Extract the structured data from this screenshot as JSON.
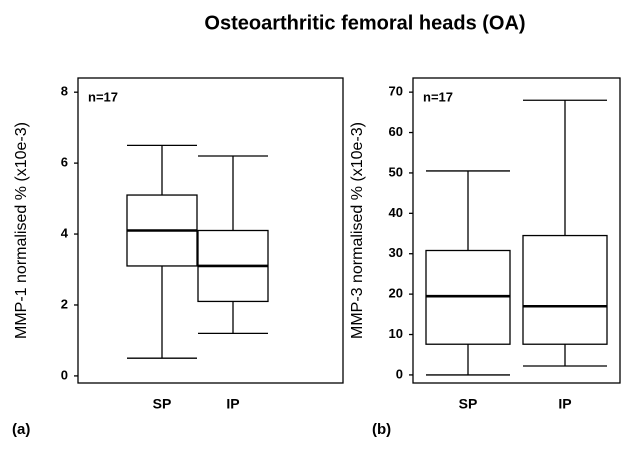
{
  "title": "Osteoarthritic femoral heads (OA)",
  "chart_data": [
    {
      "type": "box",
      "panel": "(a)",
      "annotation": "n=17",
      "ylabel": "MMP-1 normalised % (x10e-3)",
      "categories": [
        "SP",
        "IP"
      ],
      "min": [
        0.5,
        1.2
      ],
      "q1": [
        3.1,
        2.1
      ],
      "median": [
        4.1,
        3.1
      ],
      "q3": [
        5.1,
        4.1
      ],
      "max": [
        6.5,
        6.2
      ],
      "ylim": [
        -0.2,
        8.4
      ],
      "yticks": [
        0,
        2,
        4,
        6,
        8
      ]
    },
    {
      "type": "box",
      "panel": "(b)",
      "annotation": "n=17",
      "ylabel": "MMP-3 normalised % (x10e-3)",
      "categories": [
        "SP",
        "IP"
      ],
      "min": [
        0,
        2.2
      ],
      "q1": [
        7.6,
        7.6
      ],
      "median": [
        19.5,
        17
      ],
      "q3": [
        30.8,
        34.5
      ],
      "max": [
        50.5,
        68
      ],
      "ylim": [
        -2,
        73.5
      ],
      "yticks": [
        0,
        10,
        20,
        30,
        40,
        50,
        60,
        70
      ]
    }
  ]
}
